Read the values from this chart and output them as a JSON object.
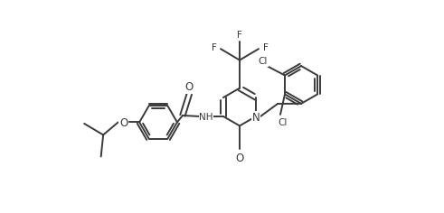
{
  "background_color": "#ffffff",
  "line_color": "#3a3a3a",
  "line_width": 1.4,
  "text_color": "#3a3a3a",
  "font_size": 7.5,
  "figsize": [
    4.91,
    2.36
  ],
  "dpi": 100,
  "xlim": [
    0,
    9.82
  ],
  "ylim": [
    0,
    4.72
  ]
}
